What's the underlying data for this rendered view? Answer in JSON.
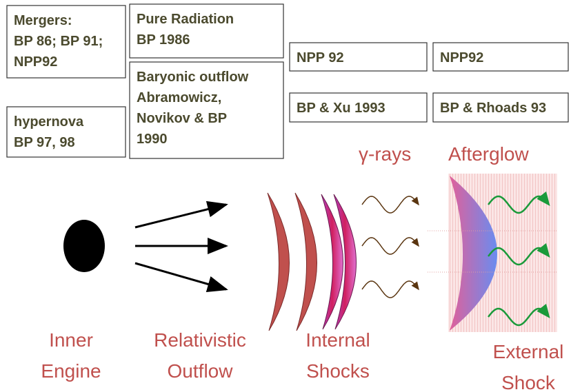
{
  "boxes": [
    {
      "lines": [
        "Mergers:",
        "BP 86; BP 91;",
        "NPP92"
      ]
    },
    {
      "lines": [
        "Pure Radiation",
        "BP 1986"
      ]
    },
    {
      "lines": [
        "Baryonic outflow",
        "Abramowicz,",
        "Novikov & BP",
        "1990"
      ]
    },
    {
      "lines": [
        "hypernova",
        "BP 97, 98"
      ]
    },
    {
      "lines": [
        "NPP 92"
      ]
    },
    {
      "lines": [
        "NPP92"
      ]
    },
    {
      "lines": [
        "BP & Xu 1993"
      ]
    },
    {
      "lines": [
        "BP & Rhoads 93"
      ]
    }
  ],
  "labels": {
    "gamma": "γ-rays",
    "afterglow": "Afterglow"
  },
  "stages": [
    {
      "lines": [
        "Inner",
        "Engine"
      ]
    },
    {
      "lines": [
        "Relativistic",
        "Outflow"
      ]
    },
    {
      "lines": [
        "Internal",
        "Shocks"
      ]
    },
    {
      "lines": [
        "External",
        "Shock"
      ]
    }
  ]
}
